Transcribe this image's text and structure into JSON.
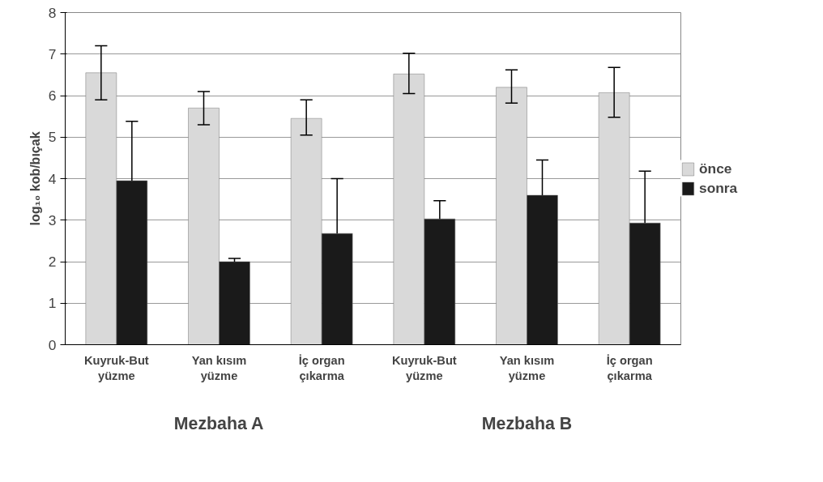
{
  "chart_data": {
    "type": "bar",
    "ylabel": "log₁₀ kob/bıçak",
    "categories": [
      "Kuyruk-But\nyüzme",
      "Yan kısım\nyüzme",
      "İç organ\nçıkarma",
      "Kuyruk-But\nyüzme",
      "Yan kısım\nyüzme",
      "İç organ\nçıkarma"
    ],
    "series": [
      {
        "name": "önce",
        "color": "#d9d9d9",
        "values": [
          6.55,
          5.7,
          5.45,
          6.52,
          6.2,
          6.07
        ],
        "errors": [
          [
            5.9,
            7.2
          ],
          [
            5.3,
            6.1
          ],
          [
            5.05,
            5.9
          ],
          [
            6.05,
            7.02
          ],
          [
            5.82,
            6.62
          ],
          [
            5.48,
            6.68
          ]
        ]
      },
      {
        "name": "sonra",
        "color": "#1a1a1a",
        "values": [
          3.95,
          2.0,
          2.68,
          3.03,
          3.6,
          2.93
        ],
        "errors": [
          [
            3.95,
            5.38
          ],
          [
            2.0,
            2.08
          ],
          [
            2.68,
            4.0
          ],
          [
            3.03,
            3.47
          ],
          [
            3.6,
            4.45
          ],
          [
            2.93,
            4.18
          ]
        ]
      }
    ],
    "ylim": [
      0,
      8
    ],
    "yticks": [
      0,
      1,
      2,
      3,
      4,
      5,
      6,
      7,
      8
    ],
    "grid": "y",
    "legend": "right",
    "annotations": [
      "Mezbaha A",
      "Mezbaha B"
    ]
  }
}
